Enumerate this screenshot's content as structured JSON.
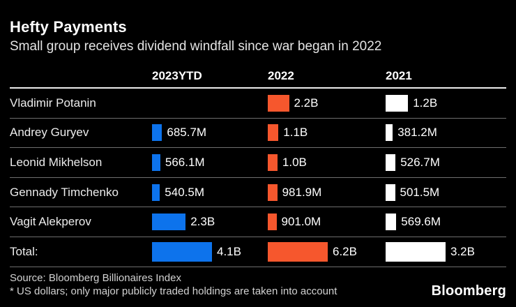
{
  "title": "Hefty Payments",
  "subtitle": "Small group receives dividend windfall since war began in 2022",
  "chart_data": {
    "type": "bar",
    "title": "Hefty Payments",
    "subtitle": "Small group receives dividend windfall since war began in 2022",
    "unit": "US dollars",
    "orientation": "horizontal",
    "grid": false,
    "legend_position": "column-headers",
    "categories": [
      "Vladimir Potanin",
      "Andrey Guryev",
      "Leonid Mikhelson",
      "Gennady Timchenko",
      "Vagit Alekperov",
      "Total:"
    ],
    "series": [
      {
        "name": "2023YTD",
        "color": "#0d73ec",
        "values_billions": [
          null,
          0.6857,
          0.5661,
          0.5405,
          2.3,
          4.1
        ],
        "labels": [
          "",
          "685.7M",
          "566.1M",
          "540.5M",
          "2.3B",
          "4.1B"
        ]
      },
      {
        "name": "2022",
        "color": "#f6572d",
        "values_billions": [
          2.2,
          1.1,
          1.0,
          0.9819,
          0.901,
          6.2
        ],
        "labels": [
          "2.2B",
          "1.1B",
          "1.0B",
          "981.9M",
          "901.0M",
          "6.2B"
        ]
      },
      {
        "name": "2021",
        "color": "#ffffff",
        "values_billions": [
          1.2,
          0.3812,
          0.5267,
          0.5015,
          0.5696,
          3.2
        ],
        "labels": [
          "1.2B",
          "381.2M",
          "526.7M",
          "501.5M",
          "569.6M",
          "3.2B"
        ]
      }
    ]
  },
  "footer": {
    "source": "Source: Bloomberg Billionaires Index",
    "note": "* US dollars; only major publicly traded holdings are taken into account",
    "logo": "Bloomberg"
  },
  "colors": {
    "background": "#000000",
    "accent_blue": "#0d73ec",
    "accent_orange": "#f6572d",
    "accent_white": "#ffffff",
    "separator": "#6e6e6e",
    "header_rule": "#ececec"
  }
}
